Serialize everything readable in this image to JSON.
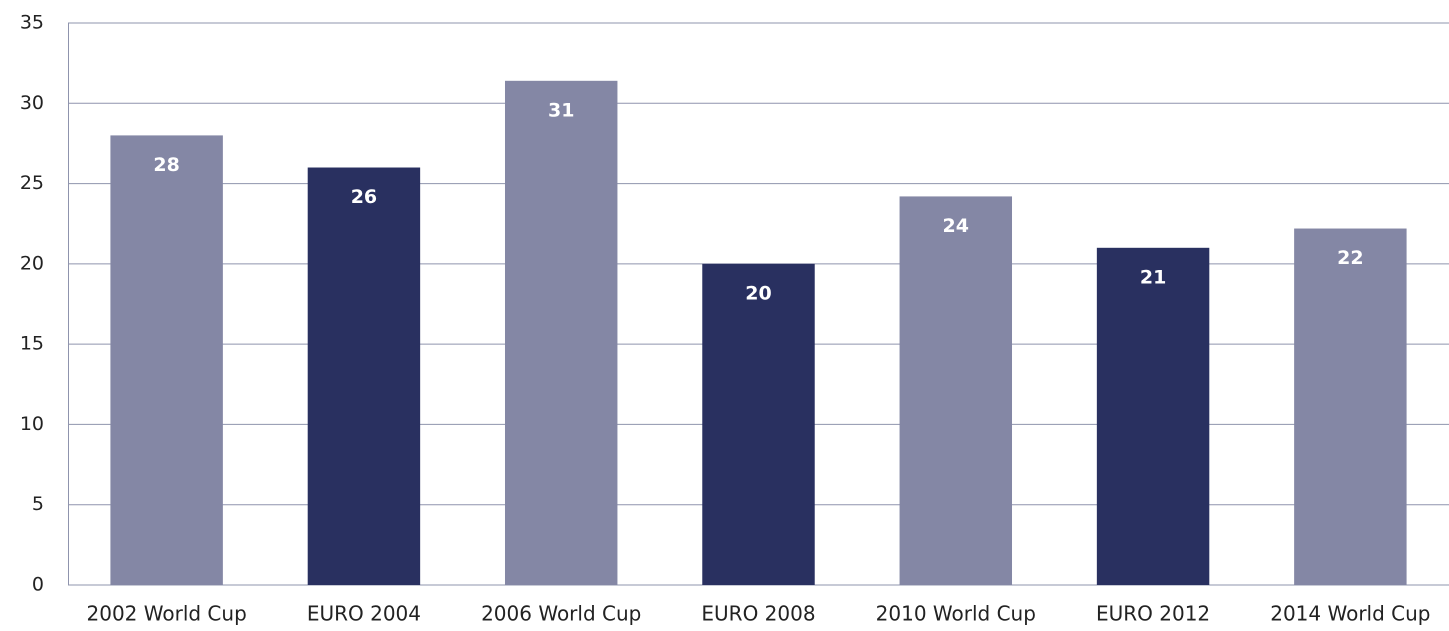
{
  "chart_data": {
    "type": "bar",
    "categories": [
      "2002 World Cup",
      "EURO 2004",
      "2006 World Cup",
      "EURO 2008",
      "2010 World Cup",
      "EURO 2012",
      "2014 World Cup"
    ],
    "values": [
      28,
      26,
      31.4,
      20,
      24.2,
      21,
      22.2
    ],
    "value_labels": [
      "28",
      "26",
      "31",
      "20",
      "24",
      "21",
      "22"
    ],
    "colors": [
      "#8487a5",
      "#293060",
      "#8487a5",
      "#293060",
      "#8487a5",
      "#293060",
      "#8487a5"
    ],
    "ylim": [
      0,
      35
    ],
    "yticks": [
      0,
      5,
      10,
      15,
      20,
      25,
      30,
      35
    ],
    "grid": true
  }
}
